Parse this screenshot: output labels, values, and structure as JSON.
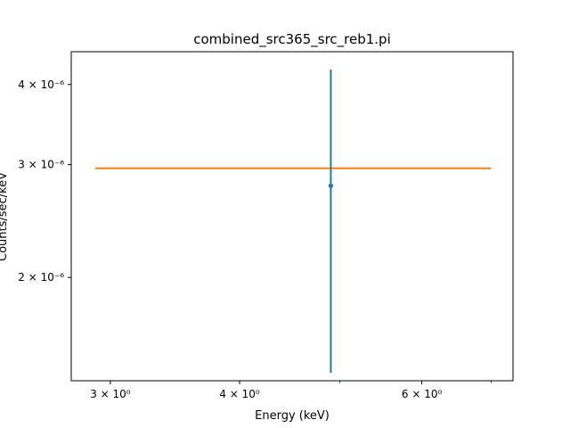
{
  "chart_data": {
    "type": "scatter",
    "title": "combined_src365_src_reb1.pi",
    "xlabel": "Energy (keV)",
    "ylabel": "Counts/sec/keV",
    "xscale": "log",
    "yscale": "log",
    "xlim": [
      2.75,
      7.35
    ],
    "ylim": [
      1.38e-06,
      4.5e-06
    ],
    "grid": false,
    "x_ticks": [
      {
        "value": 3,
        "label": "3 × 10⁰"
      },
      {
        "value": 4,
        "label": "4 × 10⁰"
      },
      {
        "value": 6,
        "label": "6 × 10⁰"
      }
    ],
    "y_ticks": [
      {
        "value": 2e-06,
        "label": "2 × 10⁻⁶"
      },
      {
        "value": 3e-06,
        "label": "3 × 10⁻⁶"
      },
      {
        "value": 4e-06,
        "label": "4 × 10⁻⁶"
      }
    ],
    "series": [
      {
        "kind": "errorbar",
        "color": "#1f77b4",
        "points": [
          {
            "x": 4.9,
            "y": 2.78e-06,
            "yerr_low": 1.42e-06,
            "yerr_high": 4.22e-06
          }
        ]
      },
      {
        "kind": "line",
        "color": "#ff7f0e",
        "points": [
          {
            "x": 2.9,
            "y": 2.96e-06
          },
          {
            "x": 7.0,
            "y": 2.96e-06
          }
        ]
      }
    ]
  }
}
